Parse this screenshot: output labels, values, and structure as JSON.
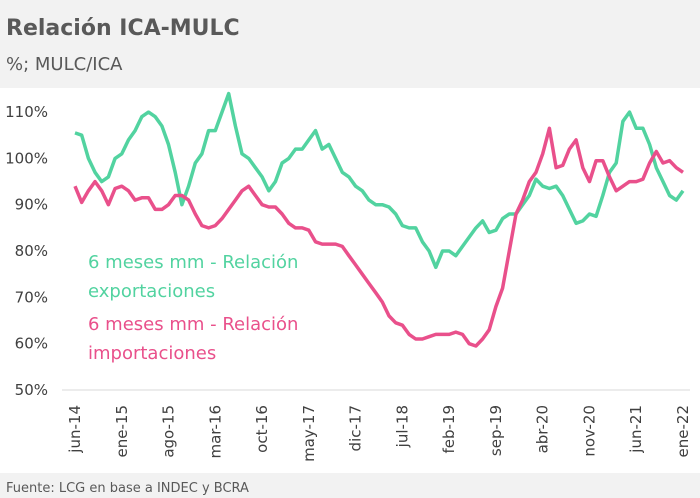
{
  "chart_data": {
    "type": "line",
    "title": "Relación ICA-MULC",
    "subtitle": "%; MULC/ICA",
    "source": "Fuente: LCG en base a INDEC y BCRA",
    "categories": [
      "jun-14",
      null,
      null,
      null,
      null,
      null,
      null,
      "ene-15",
      null,
      null,
      null,
      null,
      null,
      null,
      "ago-15",
      null,
      null,
      null,
      null,
      null,
      null,
      "mar-16",
      null,
      null,
      null,
      null,
      null,
      null,
      "oct-16",
      null,
      null,
      null,
      null,
      null,
      null,
      "may-17",
      null,
      null,
      null,
      null,
      null,
      null,
      "dic-17",
      null,
      null,
      null,
      null,
      null,
      null,
      "jul-18",
      null,
      null,
      null,
      null,
      null,
      null,
      "feb-19",
      null,
      null,
      null,
      null,
      null,
      null,
      "sep-19",
      null,
      null,
      null,
      null,
      null,
      null,
      "abr-20",
      null,
      null,
      null,
      null,
      null,
      null,
      "nov-20",
      null,
      null,
      null,
      null,
      null,
      null,
      "jun-21",
      null,
      null,
      null,
      null,
      null,
      null,
      "ene-22"
    ],
    "series": [
      {
        "name": "6 meses mm - Relación exportaciones",
        "color": "#52d3a0",
        "values": [
          105.5,
          105,
          100,
          97,
          95,
          96,
          100,
          101,
          104,
          106,
          109,
          110,
          109,
          107,
          103,
          97,
          90,
          94,
          99,
          101,
          106,
          106,
          110,
          114,
          107,
          101,
          100,
          98,
          96,
          93,
          95,
          99,
          100,
          102,
          102,
          104,
          106,
          102,
          103,
          100,
          97,
          96,
          94,
          93,
          91,
          90,
          90,
          89.5,
          88,
          85.5,
          85,
          85,
          82,
          80,
          76.5,
          80,
          80,
          79,
          81,
          83,
          85,
          86.5,
          84,
          84.5,
          87,
          88,
          88,
          90,
          92,
          95.5,
          94,
          93.5,
          94,
          92,
          89,
          86,
          86.5,
          88,
          87.5,
          92,
          97,
          99,
          108,
          110,
          106.5,
          106.5,
          103,
          98,
          95,
          92,
          91,
          93
        ]
      },
      {
        "name": "6 meses mm - Relación importaciones",
        "color": "#e9508b",
        "values": [
          94,
          90.5,
          93,
          95,
          93,
          90,
          93.5,
          94,
          93,
          91,
          91.5,
          91.5,
          89,
          89,
          90,
          92,
          92,
          91,
          88,
          85.5,
          85,
          85.5,
          87,
          89,
          91,
          93,
          94,
          92,
          90,
          89.5,
          89.5,
          88,
          86,
          85,
          85,
          84.5,
          82,
          81.5,
          81.5,
          81.5,
          81,
          79,
          77,
          75,
          73,
          71,
          69,
          66,
          64.5,
          64,
          62,
          61,
          61,
          61.5,
          62,
          62,
          62,
          62.5,
          62,
          60,
          59.5,
          61,
          63,
          68,
          72,
          80,
          88,
          91,
          95,
          97,
          101,
          106.5,
          98,
          98.5,
          102,
          104,
          98,
          95,
          99.5,
          99.5,
          96,
          93,
          94,
          95,
          95,
          95.5,
          99,
          101.5,
          99,
          99.5,
          98,
          97
        ]
      }
    ],
    "ylim": [
      50,
      115.2
    ],
    "yticks": [
      {
        "value": 50,
        "label": "50%"
      },
      {
        "value": 60,
        "label": "60%"
      },
      {
        "value": 70,
        "label": "70%"
      },
      {
        "value": 80,
        "label": "80%"
      },
      {
        "value": 90,
        "label": "90%"
      },
      {
        "value": 100,
        "label": "100%"
      },
      {
        "value": 110,
        "label": "110%"
      }
    ]
  }
}
